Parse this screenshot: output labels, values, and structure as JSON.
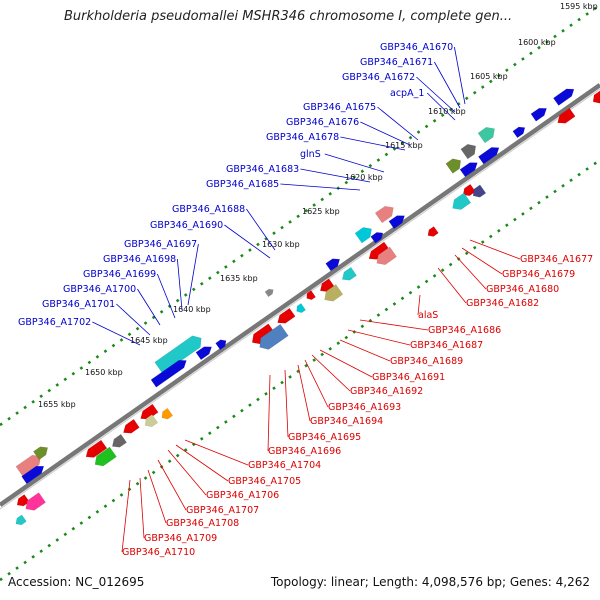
{
  "title": "Burkholderia pseudomallei MSHR346 chromosome I, complete gen...",
  "accession": "Accession: NC_012695",
  "topology": "Topology: linear; Length: 4,098,576 bp; Genes: 4,262",
  "colors": {
    "forward_label": "#0000cc",
    "reverse_label": "#dd0000",
    "forward_gene": "#0a0ad8",
    "reverse_gene": "#e60000",
    "backbone": "#777777",
    "dotted_track": "#1a8a1a"
  },
  "scale_ticks": [
    "1595 kbp",
    "1600 kbp",
    "1605 kbp",
    "1610 kbp",
    "1615 kbp",
    "1620 kbp",
    "1625 kbp",
    "1630 kbp",
    "1635 kbp",
    "1640 kbp",
    "1645 kbp",
    "1650 kbp",
    "1655 kbp"
  ],
  "forward_labels": [
    "GBP346_A1670",
    "GBP346_A1671",
    "GBP346_A1672",
    "acpA_1",
    "GBP346_A1675",
    "GBP346_A1676",
    "GBP346_A1678",
    "glnS",
    "GBP346_A1683",
    "GBP346_A1685",
    "GBP346_A1688",
    "GBP346_A1690",
    "GBP346_A1697",
    "GBP346_A1698",
    "GBP346_A1699",
    "GBP346_A1700",
    "GBP346_A1701",
    "GBP346_A1702"
  ],
  "reverse_labels": [
    "GBP346_A1677",
    "GBP346_A1679",
    "GBP346_A1680",
    "GBP346_A1682",
    "alaS",
    "GBP346_A1686",
    "GBP346_A1687",
    "GBP346_A1689",
    "GBP346_A1691",
    "GBP346_A1692",
    "GBP346_A1693",
    "GBP346_A1694",
    "GBP346_A1695",
    "GBP346_A1696",
    "GBP346_A1704",
    "GBP346_A1705",
    "GBP346_A1706",
    "GBP346_A1707",
    "GBP346_A1708",
    "GBP346_A1709",
    "GBP346_A1710"
  ]
}
